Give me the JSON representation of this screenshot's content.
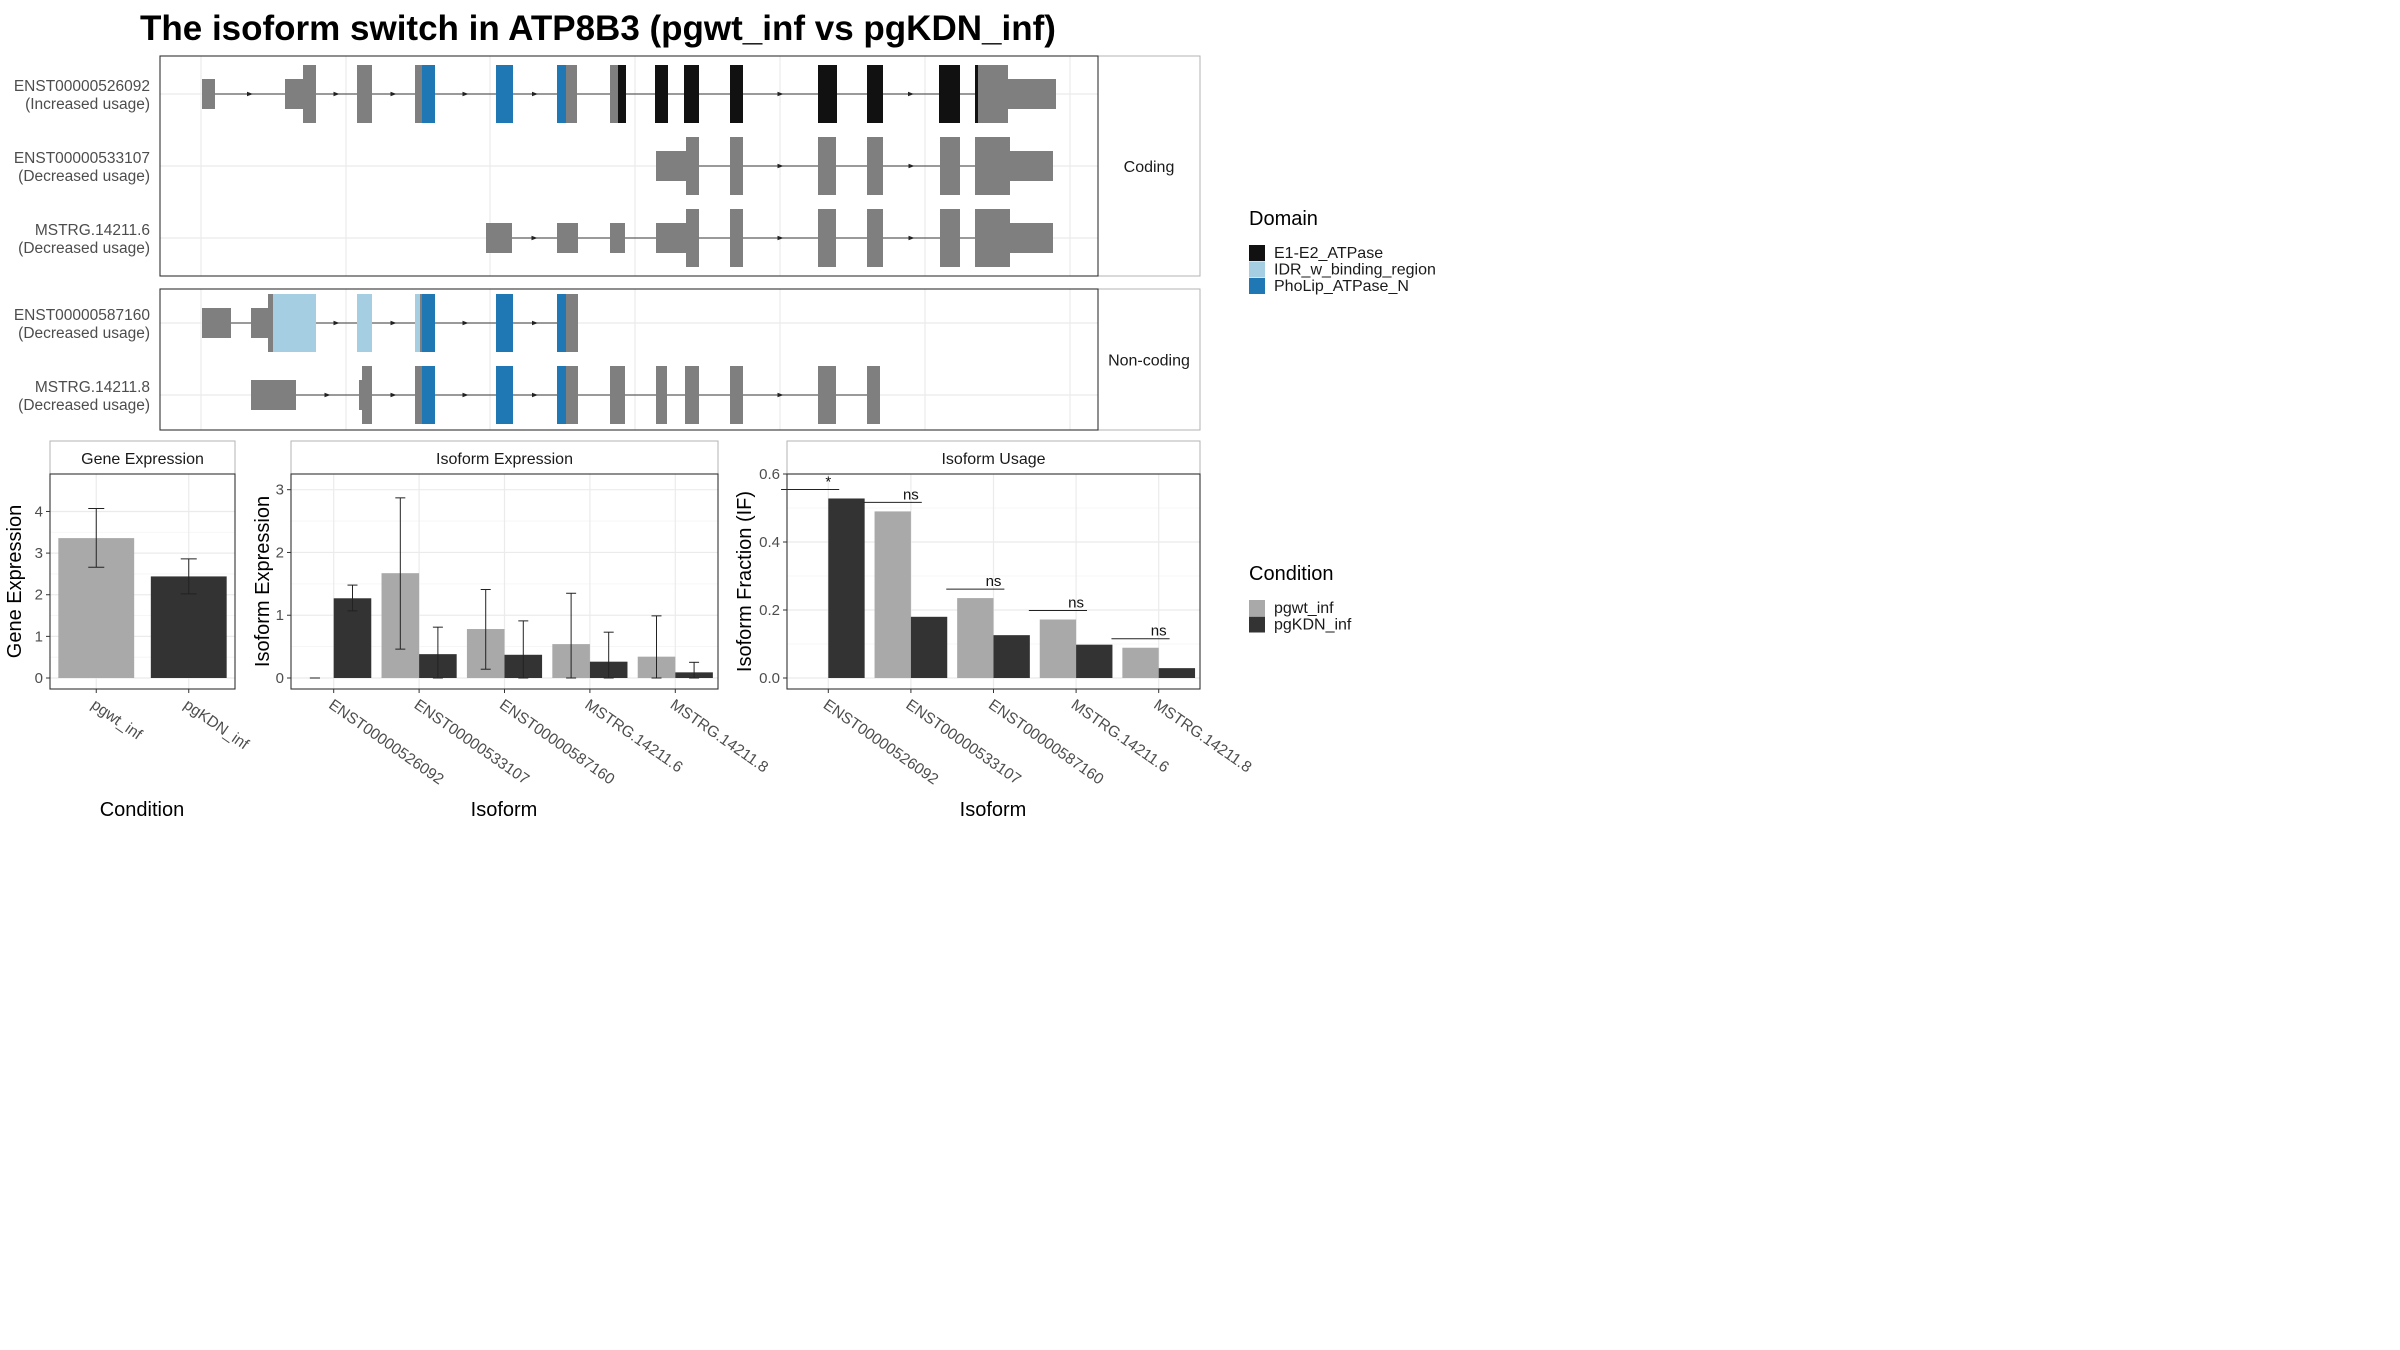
{
  "title": "The isoform switch in ATP8B3 (pgwt_inf vs pgKDN_inf)",
  "colors": {
    "E1": "#111111",
    "IDR": "#a6cee3",
    "Pho": "#1f78b4",
    "exon": "#7f7f7f",
    "wt": "#a9a9a9",
    "kd": "#333333"
  },
  "structure": {
    "panels": [
      {
        "label": "Coding",
        "isoforms": [
          {
            "name": "ENST00000526092",
            "usage": "(Increased usage)"
          },
          {
            "name": "ENST00000533107",
            "usage": "(Decreased usage)"
          },
          {
            "name": "MSTRG.14211.6",
            "usage": "(Decreased usage)"
          }
        ]
      },
      {
        "label": "Non-coding",
        "isoforms": [
          {
            "name": "ENST00000587160",
            "usage": "(Decreased usage)"
          },
          {
            "name": "MSTRG.14211.8",
            "usage": "(Decreased usage)"
          }
        ]
      }
    ]
  },
  "legend_domain": {
    "title": "Domain",
    "items": [
      {
        "label": "E1-E2_ATPase",
        "color": "#111111"
      },
      {
        "label": "IDR_w_binding_region",
        "color": "#a6cee3"
      },
      {
        "label": "PhoLip_ATPase_N",
        "color": "#1f78b4"
      }
    ]
  },
  "legend_condition": {
    "title": "Condition",
    "items": [
      {
        "label": "pgwt_inf",
        "color": "#a9a9a9"
      },
      {
        "label": "pgKDN_inf",
        "color": "#333333"
      }
    ]
  },
  "chart_data": [
    {
      "type": "bar",
      "strip": "Gene Expression",
      "xlabel": "Condition",
      "ylabel": "Gene Expression",
      "ylim": [
        0,
        4.9
      ],
      "yticks": [
        0,
        1,
        2,
        3,
        4
      ],
      "categories": [
        "pgwt_inf",
        "pgKDN_inf"
      ],
      "values": [
        3.36,
        2.44
      ],
      "error": [
        [
          2.66,
          4.07
        ],
        [
          2.02,
          2.86
        ]
      ]
    },
    {
      "type": "bar",
      "strip": "Isoform Expression",
      "xlabel": "Isoform",
      "ylabel": "Isoform Expression",
      "ylim": [
        0,
        3.25
      ],
      "yticks": [
        0,
        1,
        2,
        3
      ],
      "categories": [
        "ENST00000526092",
        "ENST00000533107",
        "ENST00000587160",
        "MSTRG.14211.6",
        "MSTRG.14211.8"
      ],
      "series": [
        {
          "name": "pgwt_inf",
          "values": [
            0,
            1.67,
            0.78,
            0.54,
            0.34
          ],
          "error": [
            [
              0,
              0
            ],
            [
              0.46,
              2.87
            ],
            [
              0.14,
              1.41
            ],
            [
              0,
              1.35
            ],
            [
              0,
              0.99
            ]
          ]
        },
        {
          "name": "pgKDN_inf",
          "values": [
            1.27,
            0.38,
            0.37,
            0.26,
            0.09
          ],
          "error": [
            [
              1.07,
              1.48
            ],
            [
              0,
              0.81
            ],
            [
              0,
              0.91
            ],
            [
              0,
              0.73
            ],
            [
              0,
              0.25
            ]
          ]
        }
      ]
    },
    {
      "type": "bar",
      "strip": "Isoform Usage",
      "xlabel": "Isoform",
      "ylabel": "Isoform Fraction (IF)",
      "ylim": [
        0,
        0.6
      ],
      "yticks": [
        "0.0",
        "0.2",
        "0.4",
        "0.6"
      ],
      "categories": [
        "ENST00000526092",
        "ENST00000533107",
        "ENST00000587160",
        "MSTRG.14211.6",
        "MSTRG.14211.8"
      ],
      "series": [
        {
          "name": "pgwt_inf",
          "values": [
            0,
            0.49,
            0.235,
            0.172,
            0.089
          ]
        },
        {
          "name": "pgKDN_inf",
          "values": [
            0.528,
            0.18,
            0.126,
            0.098,
            0.029
          ]
        }
      ],
      "significance": [
        "*",
        "ns",
        "ns",
        "ns",
        "ns"
      ]
    }
  ]
}
